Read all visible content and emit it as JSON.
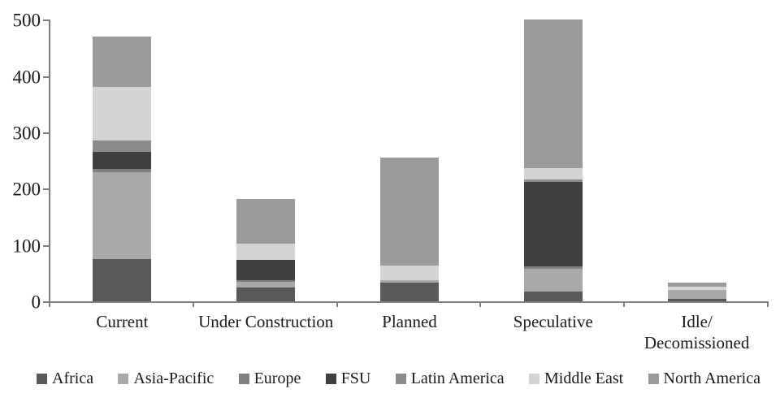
{
  "chart_data": {
    "type": "bar",
    "stacked": true,
    "title": "",
    "xlabel": "",
    "ylabel": "",
    "categories": [
      "Current",
      "Under Construction",
      "Planned",
      "Speculative",
      "Idle/\nDecomissioned"
    ],
    "series": [
      {
        "name": "Africa",
        "color": "#595959",
        "values": [
          75,
          25,
          33,
          18,
          5
        ]
      },
      {
        "name": "Asia-Pacific",
        "color": "#a9a9a9",
        "values": [
          155,
          10,
          4,
          40,
          15
        ]
      },
      {
        "name": "Europe",
        "color": "#7f7f7f",
        "values": [
          5,
          3,
          0,
          4,
          0
        ]
      },
      {
        "name": "FSU",
        "color": "#404040",
        "values": [
          30,
          35,
          0,
          150,
          0
        ]
      },
      {
        "name": "Latin America",
        "color": "#8c8c8c",
        "values": [
          21,
          0,
          0,
          4,
          0
        ]
      },
      {
        "name": "Middle East",
        "color": "#d4d4d4",
        "values": [
          95,
          30,
          26,
          20,
          6
        ]
      },
      {
        "name": "North America",
        "color": "#9a9a9a",
        "values": [
          89,
          79,
          192,
          264,
          7
        ]
      }
    ],
    "ylim": [
      0,
      500
    ],
    "y_ticks": [
      0,
      100,
      200,
      300,
      400,
      500
    ],
    "grid": false,
    "legend_position": "bottom",
    "axis_color": "#7f7f7f"
  }
}
